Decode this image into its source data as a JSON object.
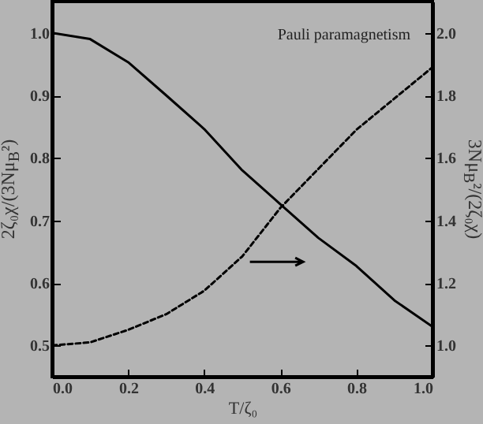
{
  "chart_data": {
    "type": "line",
    "xlabel": "T/ζ₀",
    "ylabel": "2ζ₀χ/(3Nμ$_{B}$²)",
    "y2label": "3Nμ$_{B}$²/(2ζ₀χ)",
    "annotations": [
      "Pauli paramagnetism"
    ],
    "x": [
      0,
      0.1,
      0.2,
      0.3,
      0.4,
      0.5,
      0.6,
      0.7,
      0.8,
      0.9,
      1.0
    ],
    "series": [
      {
        "color": "#000000",
        "line_style": "solid",
        "values": [
          1.0,
          0.99,
          0.953,
          0.9,
          0.846,
          0.78,
          0.726,
          0.672,
          0.627,
          0.572,
          0.53
        ]
      },
      {
        "color": "#000000",
        "line_style": "dashed",
        "axis": "y2",
        "values": [
          1.0,
          1.01,
          1.05,
          1.1,
          1.175,
          1.285,
          1.44,
          1.565,
          1.69,
          1.79,
          1.89
        ]
      }
    ],
    "xlim": [
      0,
      1
    ],
    "xticks": [
      {
        "value": 0,
        "label": "0.0"
      },
      0.2,
      0.4,
      0.6,
      0.8,
      {
        "value": 1,
        "label": "1.0"
      }
    ],
    "ylim": [
      0.45,
      1.05
    ],
    "yticks": [
      0.5,
      0.6,
      0.7,
      0.8,
      0.9,
      {
        "value": 1,
        "label": "1.0"
      }
    ],
    "y2lim": [
      0.9,
      2.1
    ],
    "y2ticks": [
      {
        "value": 1,
        "label": "1.0"
      },
      1.2,
      1.4,
      1.6,
      1.8,
      {
        "value": 2,
        "label": "2.0"
      }
    ],
    "grid": false,
    "marker": "none"
  }
}
